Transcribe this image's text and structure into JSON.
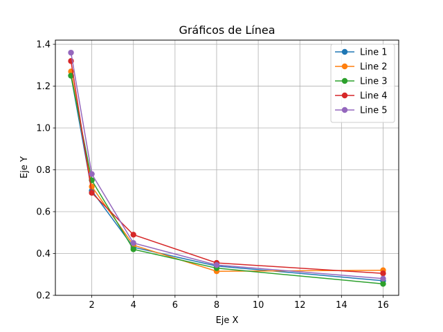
{
  "chart_data": {
    "type": "line",
    "title": "Gráficos de Línea",
    "xlabel": "Eje X",
    "ylabel": "Eje Y",
    "x": [
      1,
      2,
      4,
      8,
      16
    ],
    "xlim": [
      0.25,
      16.75
    ],
    "ylim": [
      0.2,
      1.42
    ],
    "xticks": [
      2,
      4,
      6,
      8,
      10,
      12,
      14,
      16
    ],
    "yticks": [
      0.2,
      0.4,
      0.6,
      0.8,
      1.0,
      1.2,
      1.4
    ],
    "xtick_labels": [
      "2",
      "4",
      "6",
      "8",
      "10",
      "12",
      "14",
      "16"
    ],
    "ytick_labels": [
      "0.2",
      "0.4",
      "0.6",
      "0.8",
      "1.0",
      "1.2",
      "1.4"
    ],
    "grid": true,
    "legend_position": "top-right",
    "series": [
      {
        "name": "Line 1",
        "color": "#1f77b4",
        "values": [
          1.25,
          0.7,
          0.43,
          0.34,
          0.27
        ]
      },
      {
        "name": "Line 2",
        "color": "#ff7f0e",
        "values": [
          1.27,
          0.72,
          0.44,
          0.315,
          0.32
        ]
      },
      {
        "name": "Line 3",
        "color": "#2ca02c",
        "values": [
          1.25,
          0.75,
          0.42,
          0.33,
          0.255
        ]
      },
      {
        "name": "Line 4",
        "color": "#d62728",
        "values": [
          1.32,
          0.69,
          0.49,
          0.355,
          0.305
        ]
      },
      {
        "name": "Line 5",
        "color": "#9467bd",
        "values": [
          1.36,
          0.78,
          0.45,
          0.345,
          0.28
        ]
      }
    ]
  }
}
